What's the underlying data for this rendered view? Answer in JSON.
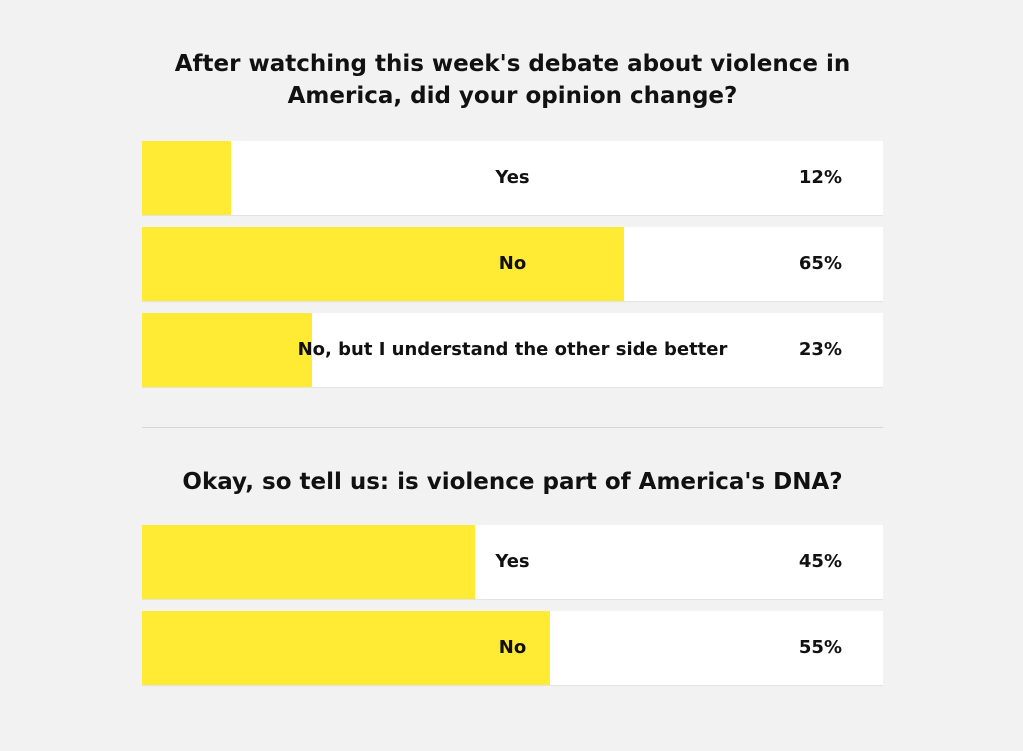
{
  "colors": {
    "background": "#f2f2f2",
    "bar_fill": "#ffeb33",
    "option_background": "#ffffff",
    "text": "#111111",
    "divider": "#d6d6d6"
  },
  "polls": [
    {
      "question": "After watching this week's debate about violence in America, did your opinion change?",
      "options": [
        {
          "label": "Yes",
          "percent_label": "12%",
          "value": 12
        },
        {
          "label": "No",
          "percent_label": "65%",
          "value": 65
        },
        {
          "label": "No, but I understand the other side better",
          "percent_label": "23%",
          "value": 23
        }
      ]
    },
    {
      "question": "Okay, so tell us: is violence part of America's DNA?",
      "options": [
        {
          "label": "Yes",
          "percent_label": "45%",
          "value": 45
        },
        {
          "label": "No",
          "percent_label": "55%",
          "value": 55
        }
      ]
    }
  ]
}
